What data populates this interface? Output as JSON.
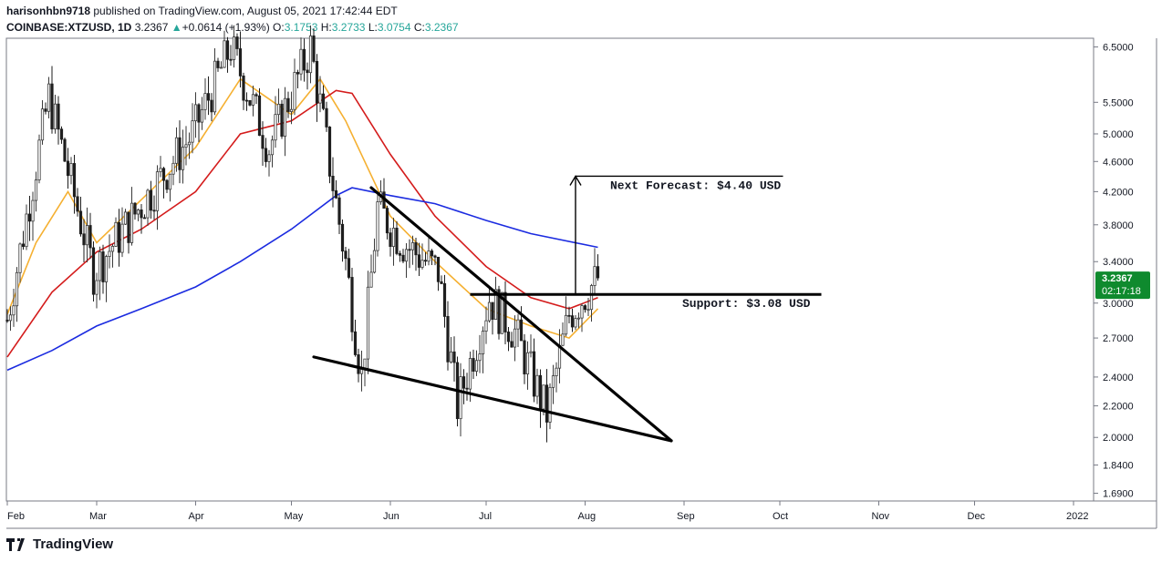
{
  "header": {
    "publisher": "harisonhbn9718",
    "published_text": "published on TradingView.com, August 05, 2021 17:42:44 EDT",
    "symbol": "COINBASE:XTZUSD, 1D",
    "last": "3.2367",
    "change_arrow": "▲",
    "change": "+0.0614 (+1.93%)",
    "o_label": "O:",
    "o_value": "3.1753",
    "h_label": "H:",
    "h_value": "3.2733",
    "l_label": "L:",
    "l_value": "3.0754",
    "c_label": "C:",
    "c_value": "3.2367"
  },
  "footer": {
    "brand": "TradingView",
    "logo_icon": "tradingview-logo-icon"
  },
  "chart_data": {
    "type": "candlestick",
    "y_scale": "log",
    "ylim": [
      1.66,
      6.6
    ],
    "y_ticks": [
      "6.5000",
      "5.5000",
      "5.0000",
      "4.6000",
      "4.2000",
      "3.8000",
      "3.4000",
      "3.0000",
      "2.7000",
      "2.4000",
      "2.2000",
      "2.0000",
      "1.8400",
      "1.6900"
    ],
    "x_ticks": [
      "Feb",
      "Mar",
      "Apr",
      "May",
      "Jun",
      "Jul",
      "Aug",
      "Sep",
      "Oct",
      "Nov",
      "Dec",
      "2022"
    ],
    "price_label": {
      "value": "3.2367",
      "countdown": "02:17:18",
      "color": "#0f8a2e"
    },
    "key_prices": [
      {
        "date": "2021-02-01",
        "price": 2.85
      },
      {
        "date": "2021-02-14",
        "price": 5.6
      },
      {
        "date": "2021-02-28",
        "price": 3.3
      },
      {
        "date": "2021-03-31",
        "price": 5.0
      },
      {
        "date": "2021-04-12",
        "price": 6.5
      },
      {
        "date": "2021-04-24",
        "price": 4.8
      },
      {
        "date": "2021-05-07",
        "price": 6.5
      },
      {
        "date": "2021-05-18",
        "price": 3.4
      },
      {
        "date": "2021-05-23",
        "price": 2.4
      },
      {
        "date": "2021-05-28",
        "price": 4.0
      },
      {
        "date": "2021-06-05",
        "price": 3.6
      },
      {
        "date": "2021-06-16",
        "price": 3.3
      },
      {
        "date": "2021-06-22",
        "price": 2.2
      },
      {
        "date": "2021-07-02",
        "price": 3.05
      },
      {
        "date": "2021-07-10",
        "price": 2.75
      },
      {
        "date": "2021-07-20",
        "price": 2.15
      },
      {
        "date": "2021-07-27",
        "price": 2.9
      },
      {
        "date": "2021-08-05",
        "price": 3.2367
      }
    ],
    "ma_series": [
      {
        "color": "#f5b031",
        "points": [
          [
            "2021-02-01",
            2.9
          ],
          [
            "2021-02-10",
            3.6
          ],
          [
            "2021-02-20",
            4.2
          ],
          [
            "2021-03-01",
            3.6
          ],
          [
            "2021-03-15",
            4.1
          ],
          [
            "2021-04-01",
            4.8
          ],
          [
            "2021-04-15",
            5.9
          ],
          [
            "2021-05-01",
            5.3
          ],
          [
            "2021-05-10",
            5.9
          ],
          [
            "2021-05-18",
            5.2
          ],
          [
            "2021-06-01",
            3.9
          ],
          [
            "2021-06-15",
            3.4
          ],
          [
            "2021-07-01",
            2.95
          ],
          [
            "2021-07-15",
            2.8
          ],
          [
            "2021-07-27",
            2.7
          ],
          [
            "2021-08-05",
            2.95
          ]
        ]
      },
      {
        "color": "#d41c1c",
        "points": [
          [
            "2021-02-01",
            2.55
          ],
          [
            "2021-02-15",
            3.1
          ],
          [
            "2021-03-01",
            3.5
          ],
          [
            "2021-03-15",
            3.75
          ],
          [
            "2021-04-01",
            4.2
          ],
          [
            "2021-04-15",
            5.0
          ],
          [
            "2021-05-01",
            5.2
          ],
          [
            "2021-05-15",
            5.7
          ],
          [
            "2021-05-20",
            5.65
          ],
          [
            "2021-06-01",
            4.7
          ],
          [
            "2021-06-15",
            3.9
          ],
          [
            "2021-07-01",
            3.35
          ],
          [
            "2021-07-15",
            3.05
          ],
          [
            "2021-07-27",
            2.95
          ],
          [
            "2021-08-05",
            3.05
          ]
        ]
      },
      {
        "color": "#1b2be0",
        "points": [
          [
            "2021-02-01",
            2.45
          ],
          [
            "2021-02-15",
            2.6
          ],
          [
            "2021-03-01",
            2.8
          ],
          [
            "2021-03-15",
            2.95
          ],
          [
            "2021-04-01",
            3.15
          ],
          [
            "2021-04-15",
            3.4
          ],
          [
            "2021-05-01",
            3.75
          ],
          [
            "2021-05-15",
            4.15
          ],
          [
            "2021-05-20",
            4.25
          ],
          [
            "2021-06-01",
            4.15
          ],
          [
            "2021-06-15",
            4.05
          ],
          [
            "2021-07-01",
            3.85
          ],
          [
            "2021-07-15",
            3.7
          ],
          [
            "2021-08-05",
            3.55
          ]
        ]
      }
    ],
    "annotations": [
      {
        "text": "Next Forecast: $4.40 USD"
      },
      {
        "text": "Support: $3.08 USD",
        "price": 3.08
      }
    ],
    "trendlines": [
      {
        "from": [
          "2021-05-08",
          2.55
        ],
        "to": [
          "2021-08-28",
          1.98
        ]
      },
      {
        "from": [
          "2021-05-26",
          4.25
        ],
        "to": [
          "2021-08-28",
          1.98
        ]
      }
    ],
    "forecast_arrow": {
      "date": "2021-07-29",
      "from": 3.08,
      "to": 4.4,
      "target_end": "2021-10-02"
    }
  }
}
